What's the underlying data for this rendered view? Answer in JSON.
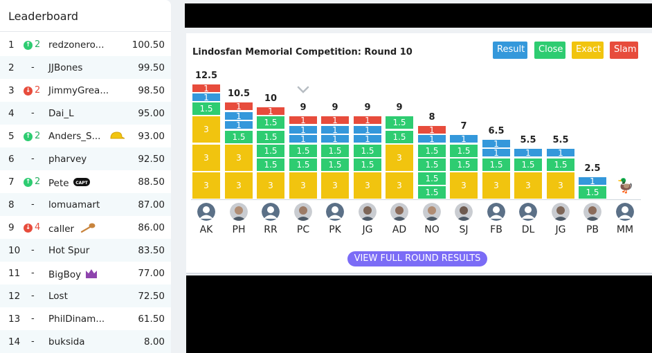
{
  "leaderboard": {
    "title": "Leaderboard",
    "rows": [
      {
        "rank": "1",
        "move": "up",
        "move_value": "2",
        "name": "redzonero...",
        "score": "100.50",
        "badge": ""
      },
      {
        "rank": "2",
        "move": "none",
        "move_value": "-",
        "name": "JJBones",
        "score": "99.50",
        "badge": ""
      },
      {
        "rank": "3",
        "move": "down",
        "move_value": "2",
        "name": "JimmyGrea...",
        "score": "98.50",
        "badge": ""
      },
      {
        "rank": "4",
        "move": "none",
        "move_value": "-",
        "name": "Dai_L",
        "score": "95.00",
        "badge": ""
      },
      {
        "rank": "5",
        "move": "up",
        "move_value": "2",
        "name": "Anders_S...",
        "score": "93.00",
        "badge": "cap-icon"
      },
      {
        "rank": "6",
        "move": "none",
        "move_value": "-",
        "name": "pharvey",
        "score": "92.50",
        "badge": ""
      },
      {
        "rank": "7",
        "move": "up",
        "move_value": "2",
        "name": "Pete",
        "score": "88.50",
        "badge": "captain-icon",
        "badge_text": "CAPT"
      },
      {
        "rank": "8",
        "move": "none",
        "move_value": "-",
        "name": "lomuamart",
        "score": "87.00",
        "badge": ""
      },
      {
        "rank": "9",
        "move": "down",
        "move_value": "4",
        "name": "caller",
        "score": "86.00",
        "badge": "spoon-icon"
      },
      {
        "rank": "10",
        "move": "none",
        "move_value": "-",
        "name": "Hot Spur",
        "score": "83.50",
        "badge": ""
      },
      {
        "rank": "11",
        "move": "none",
        "move_value": "-",
        "name": "BigBoy",
        "score": "77.00",
        "badge": "crown-icon"
      },
      {
        "rank": "12",
        "move": "none",
        "move_value": "-",
        "name": "Lost",
        "score": "72.50",
        "badge": ""
      },
      {
        "rank": "13",
        "move": "none",
        "move_value": "-",
        "name": "PhilDinam...",
        "score": "61.50",
        "badge": ""
      },
      {
        "rank": "14",
        "move": "none",
        "move_value": "-",
        "name": "buksida",
        "score": "8.00",
        "badge": ""
      }
    ]
  },
  "round": {
    "title": "Lindosfan Memorial Competition: Round 10",
    "legend": [
      {
        "label": "Result",
        "color": "#3498db"
      },
      {
        "label": "Close",
        "color": "#2ecc71"
      },
      {
        "label": "Exact",
        "color": "#f1c40f"
      },
      {
        "label": "Slam",
        "color": "#e74c3c"
      }
    ],
    "view_button": "VIEW FULL ROUND RESULTS",
    "players": [
      {
        "initials": "AK",
        "total": "12.5",
        "avatar": "default",
        "segments": [
          {
            "t": "exact",
            "v": "3"
          },
          {
            "t": "exact",
            "v": "3"
          },
          {
            "t": "exact",
            "v": "3"
          },
          {
            "t": "close",
            "v": "1.5"
          },
          {
            "t": "result",
            "v": "1"
          },
          {
            "t": "slam",
            "v": "1"
          }
        ]
      },
      {
        "initials": "PH",
        "total": "10.5",
        "avatar": "photo",
        "segments": [
          {
            "t": "exact",
            "v": "3"
          },
          {
            "t": "exact",
            "v": "3"
          },
          {
            "t": "close",
            "v": "1.5"
          },
          {
            "t": "result",
            "v": "1"
          },
          {
            "t": "result",
            "v": "1"
          },
          {
            "t": "slam",
            "v": "1"
          }
        ]
      },
      {
        "initials": "RR",
        "total": "10",
        "avatar": "default",
        "segments": [
          {
            "t": "exact",
            "v": "3"
          },
          {
            "t": "close",
            "v": "1.5"
          },
          {
            "t": "close",
            "v": "1.5"
          },
          {
            "t": "close",
            "v": "1.5"
          },
          {
            "t": "close",
            "v": "1.5"
          },
          {
            "t": "slam",
            "v": "1"
          }
        ]
      },
      {
        "initials": "PC",
        "total": "9",
        "avatar": "photo",
        "segments": [
          {
            "t": "exact",
            "v": "3"
          },
          {
            "t": "close",
            "v": "1.5"
          },
          {
            "t": "close",
            "v": "1.5"
          },
          {
            "t": "result",
            "v": "1"
          },
          {
            "t": "result",
            "v": "1"
          },
          {
            "t": "slam",
            "v": "1"
          }
        ]
      },
      {
        "initials": "PK",
        "total": "9",
        "avatar": "default",
        "segments": [
          {
            "t": "exact",
            "v": "3"
          },
          {
            "t": "close",
            "v": "1.5"
          },
          {
            "t": "close",
            "v": "1.5"
          },
          {
            "t": "result",
            "v": "1"
          },
          {
            "t": "result",
            "v": "1"
          },
          {
            "t": "slam",
            "v": "1"
          }
        ]
      },
      {
        "initials": "JG",
        "total": "9",
        "avatar": "photo",
        "segments": [
          {
            "t": "exact",
            "v": "3"
          },
          {
            "t": "close",
            "v": "1.5"
          },
          {
            "t": "close",
            "v": "1.5"
          },
          {
            "t": "result",
            "v": "1"
          },
          {
            "t": "result",
            "v": "1"
          },
          {
            "t": "slam",
            "v": "1"
          }
        ]
      },
      {
        "initials": "AD",
        "total": "9",
        "avatar": "photo",
        "segments": [
          {
            "t": "exact",
            "v": "3"
          },
          {
            "t": "exact",
            "v": "3"
          },
          {
            "t": "close",
            "v": "1.5"
          },
          {
            "t": "close",
            "v": "1.5"
          }
        ]
      },
      {
        "initials": "NO",
        "total": "8",
        "avatar": "photo",
        "segments": [
          {
            "t": "close",
            "v": "1.5"
          },
          {
            "t": "close",
            "v": "1.5"
          },
          {
            "t": "close",
            "v": "1.5"
          },
          {
            "t": "close",
            "v": "1.5"
          },
          {
            "t": "result",
            "v": "1"
          },
          {
            "t": "slam",
            "v": "1"
          }
        ]
      },
      {
        "initials": "SJ",
        "total": "7",
        "avatar": "photo",
        "segments": [
          {
            "t": "exact",
            "v": "3"
          },
          {
            "t": "close",
            "v": "1.5"
          },
          {
            "t": "close",
            "v": "1.5"
          },
          {
            "t": "result",
            "v": "1"
          }
        ]
      },
      {
        "initials": "FB",
        "total": "6.5",
        "avatar": "default",
        "segments": [
          {
            "t": "exact",
            "v": "3"
          },
          {
            "t": "close",
            "v": "1.5"
          },
          {
            "t": "result",
            "v": "1"
          },
          {
            "t": "result",
            "v": "1"
          }
        ]
      },
      {
        "initials": "DL",
        "total": "5.5",
        "avatar": "default",
        "segments": [
          {
            "t": "exact",
            "v": "3"
          },
          {
            "t": "close",
            "v": "1.5"
          },
          {
            "t": "result",
            "v": "1"
          }
        ]
      },
      {
        "initials": "JG",
        "total": "5.5",
        "avatar": "photo",
        "segments": [
          {
            "t": "exact",
            "v": "3"
          },
          {
            "t": "close",
            "v": "1.5"
          },
          {
            "t": "result",
            "v": "1"
          }
        ]
      },
      {
        "initials": "PB",
        "total": "2.5",
        "avatar": "photo",
        "segments": [
          {
            "t": "close",
            "v": "1.5"
          },
          {
            "t": "result",
            "v": "1"
          }
        ]
      },
      {
        "initials": "MM",
        "total": "",
        "avatar": "default",
        "segments": []
      }
    ]
  }
}
